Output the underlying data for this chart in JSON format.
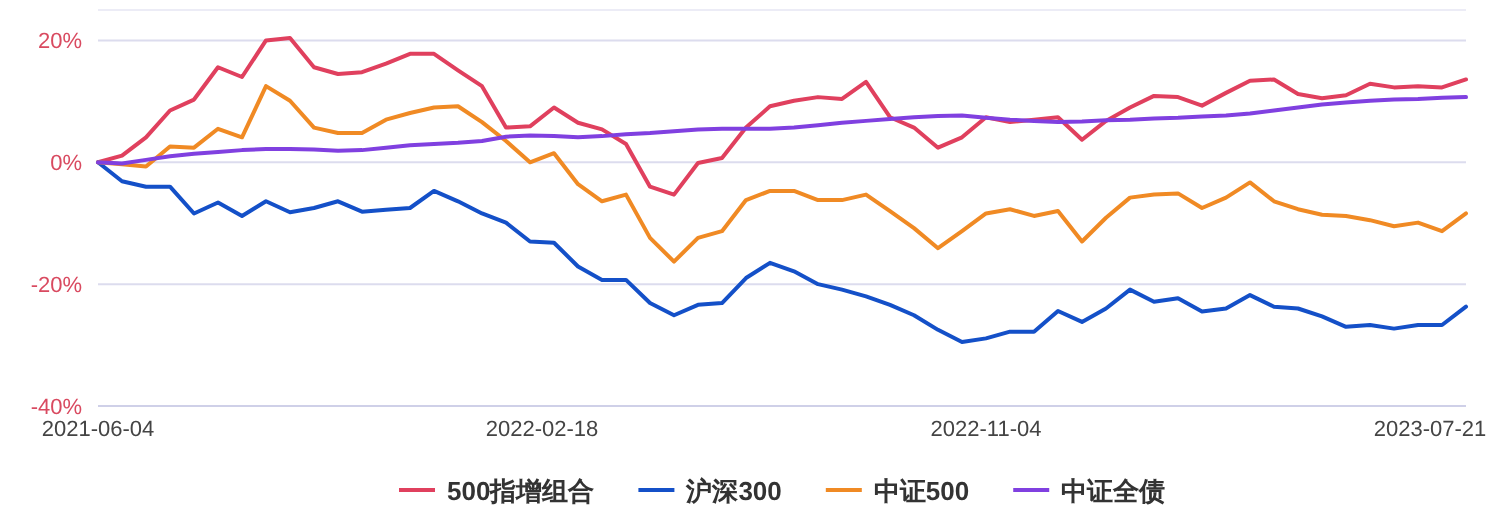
{
  "chart_data": {
    "type": "line",
    "x": [
      "2021-06-04",
      "2021-06-18",
      "2021-07-02",
      "2021-07-16",
      "2021-07-30",
      "2021-08-13",
      "2021-08-27",
      "2021-09-10",
      "2021-09-24",
      "2021-10-08",
      "2021-10-22",
      "2021-11-05",
      "2021-11-19",
      "2021-12-03",
      "2021-12-17",
      "2021-12-31",
      "2022-01-14",
      "2022-01-28",
      "2022-02-11",
      "2022-02-25",
      "2022-03-11",
      "2022-03-25",
      "2022-04-08",
      "2022-04-22",
      "2022-05-06",
      "2022-05-20",
      "2022-06-03",
      "2022-06-17",
      "2022-07-01",
      "2022-07-15",
      "2022-07-29",
      "2022-08-12",
      "2022-08-26",
      "2022-09-09",
      "2022-09-23",
      "2022-10-07",
      "2022-10-21",
      "2022-11-04",
      "2022-11-18",
      "2022-12-02",
      "2022-12-16",
      "2022-12-30",
      "2023-01-13",
      "2023-01-27",
      "2023-02-10",
      "2023-02-24",
      "2023-03-10",
      "2023-03-24",
      "2023-04-07",
      "2023-04-21",
      "2023-05-05",
      "2023-05-19",
      "2023-06-02",
      "2023-06-16",
      "2023-06-30",
      "2023-07-14",
      "2023-07-28",
      "2023-08-11"
    ],
    "series": [
      {
        "name": "500指增组合",
        "color": "#e0405e",
        "values": [
          0,
          1.1,
          4.1,
          8.5,
          10.3,
          15.6,
          14.0,
          20.0,
          20.4,
          15.6,
          14.5,
          14.8,
          16.2,
          17.8,
          17.8,
          15.1,
          12.5,
          5.7,
          5.9,
          9.0,
          6.5,
          5.4,
          3.0,
          -4.0,
          -5.3,
          -0.1,
          0.7,
          5.7,
          9.2,
          10.1,
          10.7,
          10.4,
          13.2,
          7.4,
          5.7,
          2.4,
          4.1,
          7.4,
          6.6,
          7.0,
          7.4,
          3.7,
          6.8,
          9.0,
          10.9,
          10.7,
          9.3,
          11.4,
          13.4,
          13.6,
          11.2,
          10.5,
          11.0,
          12.9,
          12.3,
          12.5,
          12.3,
          13.6
        ]
      },
      {
        "name": "沪深300",
        "color": "#1450c8",
        "values": [
          0,
          -3.1,
          -4.0,
          -4.0,
          -8.4,
          -6.6,
          -8.8,
          -6.4,
          -8.2,
          -7.5,
          -6.4,
          -8.1,
          -7.8,
          -7.5,
          -4.7,
          -6.4,
          -8.4,
          -9.9,
          -13.0,
          -13.2,
          -17.1,
          -19.3,
          -19.3,
          -23.1,
          -25.1,
          -23.4,
          -23.1,
          -19.0,
          -16.5,
          -17.9,
          -20.0,
          -20.9,
          -22.0,
          -23.4,
          -25.1,
          -27.5,
          -29.5,
          -28.9,
          -27.8,
          -27.8,
          -24.4,
          -26.2,
          -24.0,
          -20.9,
          -22.9,
          -22.3,
          -24.5,
          -24.0,
          -21.8,
          -23.7,
          -24.0,
          -25.3,
          -27.0,
          -26.7,
          -27.3,
          -26.7,
          -26.7,
          -23.7
        ]
      },
      {
        "name": "中证500",
        "color": "#f08a24",
        "values": [
          0,
          -0.3,
          -0.7,
          2.6,
          2.4,
          5.5,
          4.1,
          12.5,
          10.1,
          5.7,
          4.8,
          4.8,
          7.0,
          8.1,
          9.0,
          9.2,
          6.6,
          3.5,
          0,
          1.5,
          -3.6,
          -6.4,
          -5.3,
          -12.4,
          -16.3,
          -12.4,
          -11.3,
          -6.2,
          -4.7,
          -4.7,
          -6.2,
          -6.2,
          -5.3,
          -8.0,
          -10.8,
          -14.1,
          -11.3,
          -8.4,
          -7.7,
          -8.8,
          -8.0,
          -13.0,
          -9.1,
          -5.8,
          -5.3,
          -5.1,
          -7.5,
          -5.8,
          -3.3,
          -6.4,
          -7.7,
          -8.6,
          -8.8,
          -9.5,
          -10.5,
          -9.9,
          -11.3,
          -8.4
        ]
      },
      {
        "name": "中证全债",
        "color": "#8040e0",
        "values": [
          0,
          -0.2,
          0.4,
          1.0,
          1.4,
          1.7,
          2.0,
          2.2,
          2.2,
          2.1,
          1.9,
          2.0,
          2.4,
          2.8,
          3.0,
          3.2,
          3.5,
          4.2,
          4.4,
          4.3,
          4.1,
          4.3,
          4.6,
          4.8,
          5.1,
          5.4,
          5.5,
          5.5,
          5.5,
          5.7,
          6.1,
          6.5,
          6.8,
          7.1,
          7.4,
          7.6,
          7.7,
          7.3,
          7.0,
          6.8,
          6.6,
          6.7,
          6.9,
          7.0,
          7.2,
          7.3,
          7.5,
          7.7,
          8.0,
          8.5,
          9.0,
          9.5,
          9.8,
          10.1,
          10.3,
          10.4,
          10.6,
          10.7
        ]
      }
    ],
    "xlim": [
      "2021-06-04",
      "2023-08-11"
    ],
    "xticks": [
      "2021-06-04",
      "2022-02-18",
      "2022-11-04",
      "2023-07-21"
    ],
    "ylim": [
      -40,
      25
    ],
    "yticks": [
      {
        "value": -40,
        "label": "-40%"
      },
      {
        "value": -20,
        "label": "-20%"
      },
      {
        "value": 0,
        "label": "0%"
      },
      {
        "value": 20,
        "label": "20%"
      }
    ],
    "grid": "y",
    "legend": "bottom",
    "line_style": "solid"
  }
}
